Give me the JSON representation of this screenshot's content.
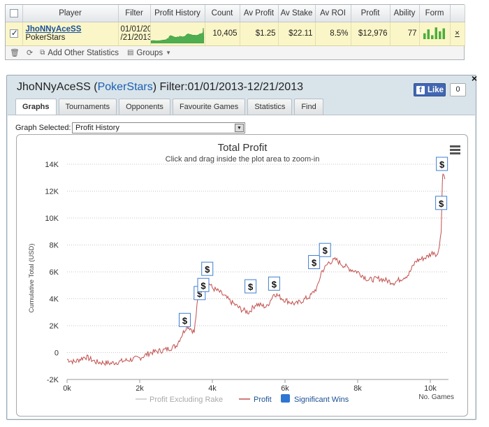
{
  "stats_table": {
    "headers": [
      "Player",
      "Filter",
      "Profit History",
      "Count",
      "Av Profit",
      "Av Stake",
      "Av ROI",
      "Profit",
      "Ability",
      "Form"
    ],
    "row": {
      "player_name": "JhoNNyAceSS",
      "player_site": "PokerStars",
      "filter_line1": "01/01/20",
      "filter_line2": "/21/2013",
      "count": "10,405",
      "av_profit": "$1.25",
      "av_stake": "$22.11",
      "av_roi": "8.5%",
      "profit": "$12,976",
      "ability": "77",
      "form_bars": [
        6,
        10,
        4,
        12,
        8,
        11
      ],
      "remove_symbol": "×"
    }
  },
  "toolbar": {
    "add_other_statistics": "Add Other Statistics",
    "groups": "Groups"
  },
  "window": {
    "title_name": "JhoNNyAceSS (",
    "title_site": "PokerStars",
    "title_filter": ") Filter:01/01/2013-12/21/2013",
    "close": "×",
    "fb_like": "Like",
    "fb_count": "0"
  },
  "tabs": [
    "Graphs",
    "Tournaments",
    "Opponents",
    "Favourite Games",
    "Statistics",
    "Find"
  ],
  "graph_selector": {
    "label": "Graph Selected:",
    "value": "Profit History"
  },
  "colors": {
    "profit_line": "#c0504d",
    "excl_rake_line": "#c8c8c8",
    "significant_wins": "#2f76d2",
    "sparkline": "#3aa83a",
    "form_bar": "#4cad3c"
  },
  "chart_data": {
    "type": "line",
    "title": "Total Profit",
    "subtitle": "Click and drag inside the plot area to zoom-in",
    "ylabel": "Cumulative Total (USD)",
    "xlabel": "No. Games",
    "ylim": [
      -2000,
      14000
    ],
    "xlim": [
      0,
      10500
    ],
    "y_ticks": [
      -2000,
      0,
      2000,
      4000,
      6000,
      8000,
      10000,
      12000,
      14000
    ],
    "y_tick_labels": [
      "-2K",
      "0",
      "2K",
      "4K",
      "6K",
      "8K",
      "10K",
      "12K",
      "14K"
    ],
    "x_ticks": [
      0,
      2000,
      4000,
      6000,
      8000,
      10000
    ],
    "x_tick_labels": [
      "0k",
      "2k",
      "4k",
      "6k",
      "8k",
      "10k"
    ],
    "grid": "horizontal dotted",
    "legend_position": "bottom",
    "series": [
      {
        "name": "Profit",
        "x": [
          0,
          200,
          500,
          800,
          1200,
          1600,
          2000,
          2300,
          2700,
          3000,
          3200,
          3300,
          3400,
          3500,
          3600,
          3700,
          3800,
          3900,
          4000,
          4200,
          4500,
          4800,
          5000,
          5200,
          5500,
          5700,
          6000,
          6300,
          6700,
          6900,
          7000,
          7100,
          7200,
          7400,
          7600,
          7800,
          8000,
          8300,
          8600,
          9000,
          9400,
          9600,
          9900,
          10100,
          10200,
          10300,
          10330,
          10350,
          10400
        ],
        "y": [
          -500,
          -700,
          -300,
          -700,
          -800,
          -600,
          -400,
          0,
          200,
          500,
          1500,
          2000,
          1800,
          1500,
          4000,
          4500,
          4700,
          5200,
          4800,
          4500,
          3800,
          3200,
          3000,
          3600,
          3400,
          4400,
          3900,
          3600,
          4200,
          4900,
          6000,
          6300,
          6700,
          6900,
          6500,
          6200,
          6000,
          5400,
          5500,
          5200,
          5800,
          6800,
          7100,
          7500,
          7200,
          9000,
          12800,
          13300,
          12900
        ]
      },
      {
        "name": "Profit Excluding Rake",
        "x": [],
        "y": []
      }
    ],
    "significant_wins": {
      "name": "Significant Wins",
      "points": [
        {
          "x": 3240,
          "y": 2400
        },
        {
          "x": 3650,
          "y": 4400
        },
        {
          "x": 3750,
          "y": 5000
        },
        {
          "x": 3860,
          "y": 6200
        },
        {
          "x": 5050,
          "y": 4900
        },
        {
          "x": 5700,
          "y": 5100
        },
        {
          "x": 6800,
          "y": 6700
        },
        {
          "x": 7100,
          "y": 7600
        },
        {
          "x": 10300,
          "y": 11100
        },
        {
          "x": 10320,
          "y": 14000
        }
      ],
      "symbol": "$"
    }
  }
}
